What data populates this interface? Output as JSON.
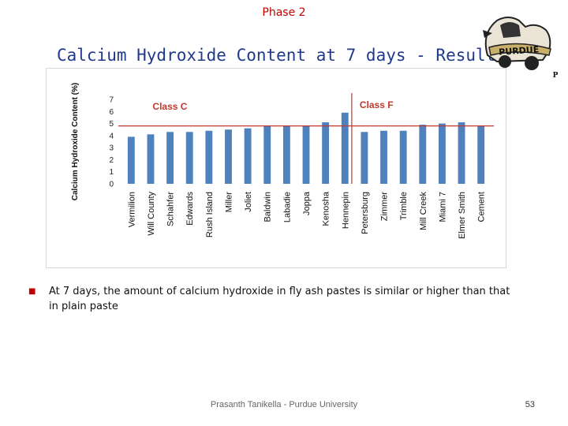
{
  "slide": {
    "phase": "Phase 2",
    "title": "Calcium Hydroxide Content at 7 days - Results",
    "bullet": "At 7 days, the amount of calcium hydroxide in fly ash pastes is similar or higher than that in plain paste",
    "footer": "Prasanth Tanikella - Purdue University",
    "page_number": "53"
  },
  "logo": {
    "text": "PURDUE",
    "letter": "P"
  },
  "chart_data": {
    "type": "bar",
    "title": "",
    "ylabel": "Calcium Hydroxide Content (%)",
    "xlabel": "",
    "ylim": [
      0,
      7
    ],
    "yticks": [
      0,
      1,
      2,
      3,
      4,
      5,
      6,
      7
    ],
    "categories": [
      "Vermilion",
      "Will County",
      "Schahfer",
      "Edwards",
      "Rush Island",
      "Miller",
      "Joliet",
      "Baldwin",
      "Labadie",
      "Joppa",
      "Kenosha",
      "Hennepin",
      "Petersburg",
      "Zimmer",
      "Trimble",
      "Mill Creek",
      "Miami 7",
      "Elmer Smith",
      "Cement"
    ],
    "values": [
      3.9,
      4.1,
      4.3,
      4.3,
      4.4,
      4.5,
      4.6,
      4.8,
      4.8,
      4.8,
      5.1,
      5.9,
      4.3,
      4.4,
      4.4,
      4.9,
      5.0,
      5.1,
      4.8
    ],
    "reference_line": 4.8,
    "groups": [
      {
        "label": "Class C",
        "start": 0,
        "end": 11
      },
      {
        "label": "Class F",
        "start": 12,
        "end": 18
      }
    ],
    "bar_color": "#4f81bd",
    "line_color": "#c0392b",
    "grid": false
  }
}
